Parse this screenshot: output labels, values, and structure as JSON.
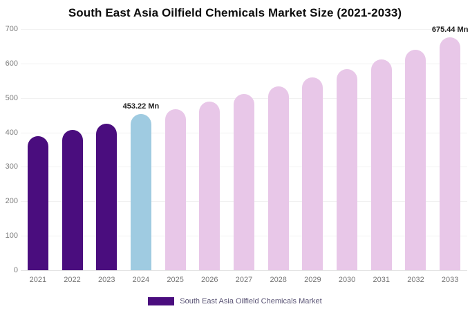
{
  "title": "South East Asia Oilfield Chemicals Market Size (2021-2033)",
  "legend": {
    "label": "South East Asia Oilfield Chemicals Market",
    "swatch_color": "#4a0d7e"
  },
  "colors": {
    "historical_bar": "#4a0d7e",
    "current_bar": "#9fcbe1",
    "forecast_bar": "#e8c7e8",
    "axis_text": "#7d7d7d",
    "annotation_text": "#1f1f1f"
  },
  "chart_data": {
    "type": "bar",
    "title": "South East Asia Oilfield Chemicals Market Size (2021-2033)",
    "xlabel": "",
    "ylabel": "",
    "ylim": [
      0,
      700
    ],
    "yticks": [
      0,
      100,
      200,
      300,
      400,
      500,
      600,
      700
    ],
    "grid": true,
    "legend_position": "bottom",
    "categories": [
      "2021",
      "2022",
      "2023",
      "2024",
      "2025",
      "2026",
      "2027",
      "2028",
      "2029",
      "2030",
      "2031",
      "2032",
      "2033"
    ],
    "values": [
      390,
      408,
      426,
      453.22,
      468,
      489,
      511,
      534,
      559,
      584,
      611,
      640,
      675.44
    ],
    "bar_colors": [
      "#4a0d7e",
      "#4a0d7e",
      "#4a0d7e",
      "#9fcbe1",
      "#e8c7e8",
      "#e8c7e8",
      "#e8c7e8",
      "#e8c7e8",
      "#e8c7e8",
      "#e8c7e8",
      "#e8c7e8",
      "#e8c7e8",
      "#e8c7e8"
    ],
    "annotations": [
      {
        "index": 3,
        "text": "453.22 Mn"
      },
      {
        "index": 12,
        "text": "675.44 Mn"
      }
    ],
    "series_name": "South East Asia Oilfield Chemicals Market"
  }
}
